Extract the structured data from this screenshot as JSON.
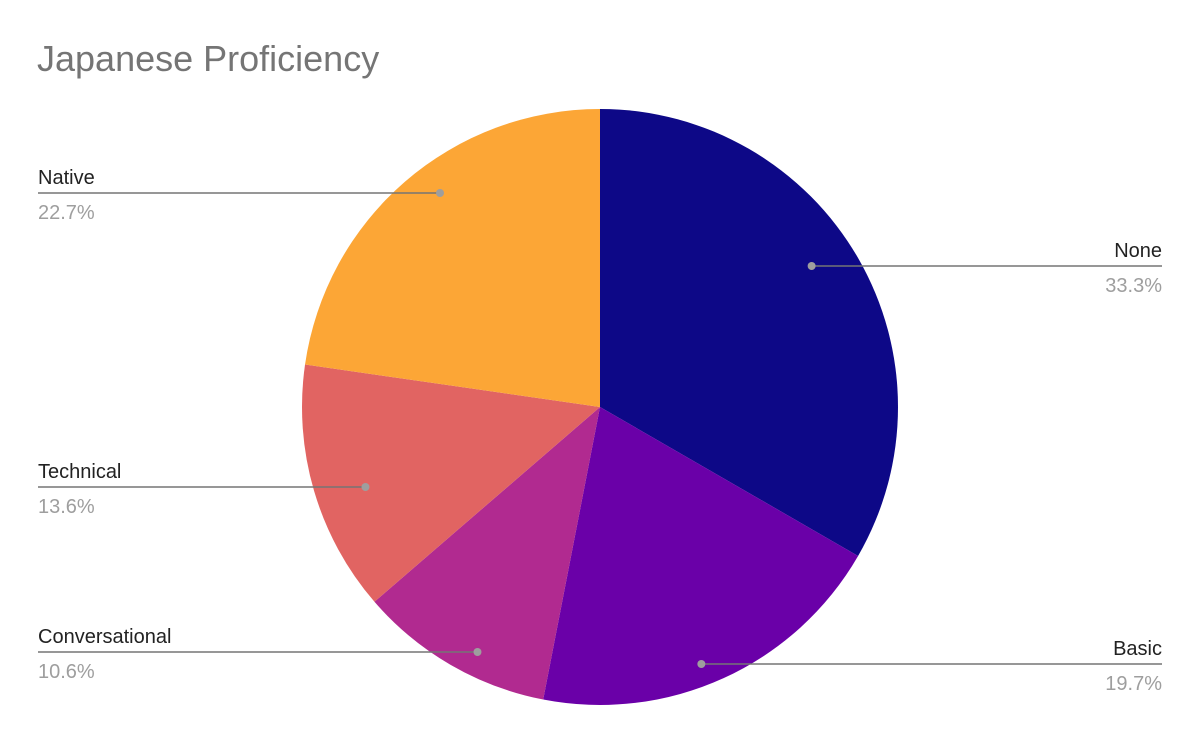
{
  "chart_data": {
    "type": "pie",
    "title": "Japanese Proficiency",
    "slices": [
      {
        "label": "None",
        "value": 33.3,
        "display": "33.3%",
        "color": "#0d0887"
      },
      {
        "label": "Basic",
        "value": 19.7,
        "display": "19.7%",
        "color": "#6a00a8"
      },
      {
        "label": "Conversational",
        "value": 10.6,
        "display": "10.6%",
        "color": "#b12a90"
      },
      {
        "label": "Technical",
        "value": 13.6,
        "display": "13.6%",
        "color": "#e16462"
      },
      {
        "label": "Native",
        "value": 22.7,
        "display": "22.7%",
        "color": "#fca636"
      }
    ],
    "start_direction": "top",
    "slice_order": "clockwise",
    "label_style": "leader-lines with name and percent",
    "legend": "none"
  }
}
